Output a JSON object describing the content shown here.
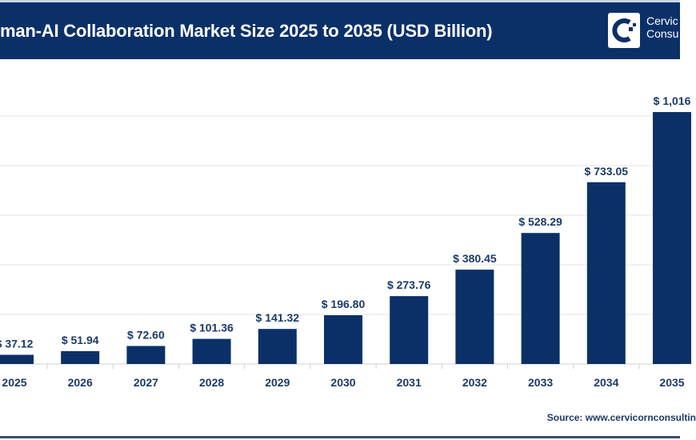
{
  "header": {
    "title": "man-AI Collaboration Market Size 2025 to 2035 (USD Billion)",
    "logo_line1": "Cervic",
    "logo_line2": "Consu"
  },
  "source": "Source: www.cervicornconsultin",
  "colors": {
    "bar": "#0b3068",
    "header": "#0b3068",
    "text": "#1b3a66"
  },
  "chart_data": {
    "type": "bar",
    "title": "man-AI Collaboration Market Size 2025 to 2035 (USD Billion)",
    "categories": [
      "2025",
      "2026",
      "2027",
      "2028",
      "2029",
      "2030",
      "2031",
      "2032",
      "2033",
      "2034",
      "2035"
    ],
    "values": [
      37.12,
      51.94,
      72.6,
      101.36,
      141.32,
      196.8,
      273.76,
      380.45,
      528.29,
      733.05,
      1016
    ],
    "labels": [
      "$ 37.12",
      "$ 51.94",
      "$ 72.60",
      "$ 101.36",
      "$ 141.32",
      "$ 196.80",
      "$ 273.76",
      "$ 380.45",
      "$ 528.29",
      "$ 733.05",
      "$ 1,016"
    ],
    "ylim": [
      0,
      1000
    ],
    "grid": true,
    "xlabel": "",
    "ylabel": ""
  }
}
